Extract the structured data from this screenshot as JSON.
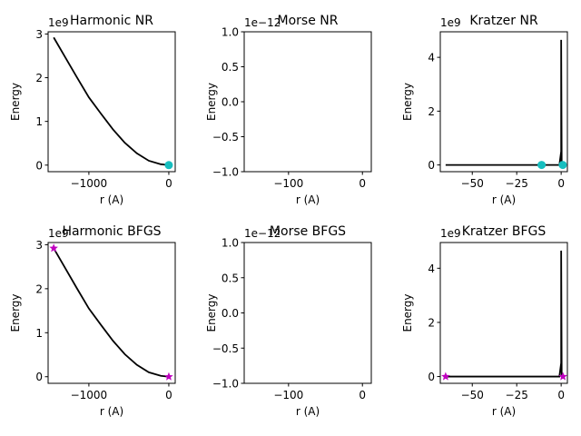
{
  "chart_data": [
    {
      "type": "line",
      "title": "Harmonic NR",
      "xlabel": "r (A)",
      "ylabel": "Energy",
      "y_offset_label": "1e9",
      "xlim": [
        -1510,
        80
      ],
      "ylim": [
        -0.15,
        3.05
      ],
      "xticks": [
        -1000,
        0
      ],
      "xticklabels": [
        "−1000",
        "0"
      ],
      "yticks": [
        0,
        1,
        2,
        3
      ],
      "yticklabels": [
        "0",
        "1",
        "2",
        "3"
      ],
      "series": [
        {
          "x": [
            -1440,
            -1300,
            -1150,
            -1000,
            -850,
            -700,
            -550,
            -400,
            -250,
            -100,
            0
          ],
          "y": [
            2.92,
            2.48,
            2.01,
            1.55,
            1.18,
            0.82,
            0.51,
            0.27,
            0.1,
            0.02,
            0.0
          ],
          "style": "line",
          "color": "#000000"
        },
        {
          "x": [
            0
          ],
          "y": [
            0
          ],
          "style": "marker",
          "marker": "circle",
          "color": "#17BEBF"
        }
      ]
    },
    {
      "type": "line",
      "title": "Morse NR",
      "xlabel": "r (A)",
      "ylabel": "Energy",
      "y_offset_label": "1e−12",
      "xlim": [
        -160,
        12
      ],
      "ylim": [
        -1.0,
        1.0
      ],
      "xticks": [
        -100,
        0
      ],
      "xticklabels": [
        "−100",
        "0"
      ],
      "yticks": [
        -1.0,
        -0.5,
        0.0,
        0.5,
        1.0
      ],
      "yticklabels": [
        "−1.0",
        "−0.5",
        "0.0",
        "0.5",
        "1.0"
      ],
      "series": []
    },
    {
      "type": "line",
      "title": "Kratzer NR",
      "xlabel": "r (A)",
      "ylabel": "Energy",
      "y_offset_label": "1e9",
      "xlim": [
        -68,
        3.5
      ],
      "ylim": [
        -0.25,
        4.95
      ],
      "xticks": [
        -50,
        -25,
        0
      ],
      "xticklabels": [
        "−50",
        "−25",
        "0"
      ],
      "yticks": [
        0,
        2,
        4
      ],
      "yticklabels": [
        "0",
        "2",
        "4"
      ],
      "series": [
        {
          "x": [
            -65,
            -10,
            -1,
            0,
            0,
            0.3,
            1
          ],
          "y": [
            0,
            0,
            0,
            0.5,
            4.65,
            0.02,
            0
          ],
          "style": "line",
          "color": "#000000"
        },
        {
          "x": [
            -11,
            0.9
          ],
          "y": [
            0,
            0
          ],
          "style": "marker",
          "marker": "circle",
          "color": "#17BEBF"
        }
      ]
    },
    {
      "type": "line",
      "title": "Harmonic BFGS",
      "xlabel": "r (A)",
      "ylabel": "Energy",
      "y_offset_label": "1e9",
      "xlim": [
        -1510,
        80
      ],
      "ylim": [
        -0.15,
        3.05
      ],
      "xticks": [
        -1000,
        0
      ],
      "xticklabels": [
        "−1000",
        "0"
      ],
      "yticks": [
        0,
        1,
        2,
        3
      ],
      "yticklabels": [
        "0",
        "1",
        "2",
        "3"
      ],
      "series": [
        {
          "x": [
            -1440,
            -1300,
            -1150,
            -1000,
            -850,
            -700,
            -550,
            -400,
            -250,
            -100,
            0
          ],
          "y": [
            2.92,
            2.48,
            2.01,
            1.55,
            1.18,
            0.82,
            0.51,
            0.27,
            0.1,
            0.02,
            0.0
          ],
          "style": "line",
          "color": "#000000"
        },
        {
          "x": [
            -1440,
            0
          ],
          "y": [
            2.92,
            0
          ],
          "style": "marker",
          "marker": "star",
          "color": "#BF00BF"
        }
      ]
    },
    {
      "type": "line",
      "title": "Morse BFGS",
      "xlabel": "r (A)",
      "ylabel": "Energy",
      "y_offset_label": "1e−12",
      "xlim": [
        -160,
        12
      ],
      "ylim": [
        -1.0,
        1.0
      ],
      "xticks": [
        -100,
        0
      ],
      "xticklabels": [
        "−100",
        "0"
      ],
      "yticks": [
        -1.0,
        -0.5,
        0.0,
        0.5,
        1.0
      ],
      "yticklabels": [
        "−1.0",
        "−0.5",
        "0.0",
        "0.5",
        "1.0"
      ],
      "series": []
    },
    {
      "type": "line",
      "title": "Kratzer BFGS",
      "xlabel": "r (A)",
      "ylabel": "Energy",
      "y_offset_label": "1e9",
      "xlim": [
        -68,
        3.5
      ],
      "ylim": [
        -0.25,
        4.95
      ],
      "xticks": [
        -50,
        -25,
        0
      ],
      "xticklabels": [
        "−50",
        "−25",
        "0"
      ],
      "yticks": [
        0,
        2,
        4
      ],
      "yticklabels": [
        "0",
        "2",
        "4"
      ],
      "series": [
        {
          "x": [
            -65,
            -10,
            -1,
            0,
            0,
            0.3,
            1
          ],
          "y": [
            0,
            0,
            0,
            0.5,
            4.65,
            0.02,
            0
          ],
          "style": "line",
          "color": "#000000"
        },
        {
          "x": [
            -65,
            1
          ],
          "y": [
            0,
            0
          ],
          "style": "marker",
          "marker": "star",
          "color": "#BF00BF"
        }
      ]
    }
  ]
}
